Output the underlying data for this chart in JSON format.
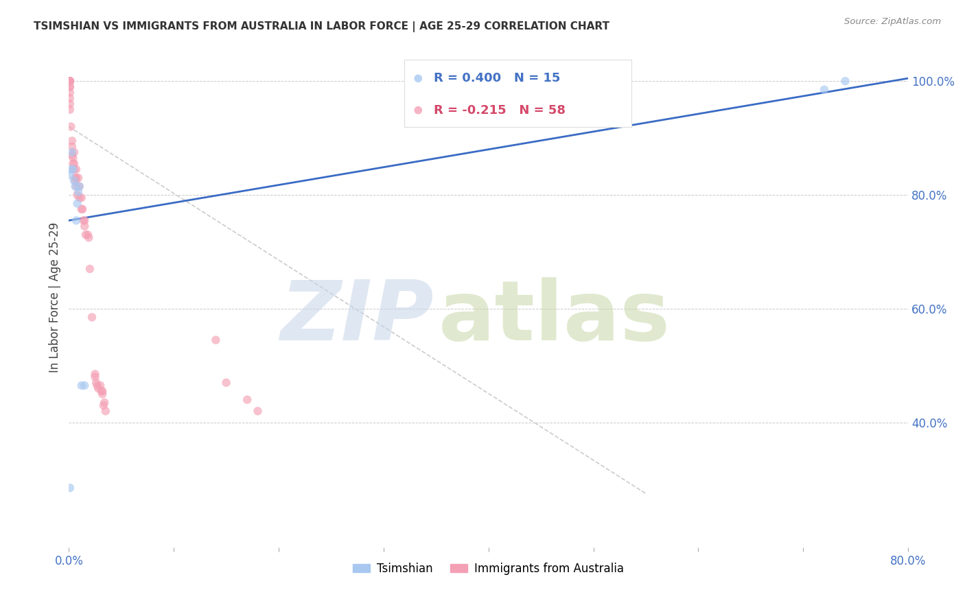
{
  "title": "TSIMSHIAN VS IMMIGRANTS FROM AUSTRALIA IN LABOR FORCE | AGE 25-29 CORRELATION CHART",
  "source": "Source: ZipAtlas.com",
  "ylabel": "In Labor Force | Age 25-29",
  "xlim": [
    0.0,
    0.8
  ],
  "ylim": [
    0.18,
    1.06
  ],
  "xticks": [
    0.0,
    0.1,
    0.2,
    0.3,
    0.4,
    0.5,
    0.6,
    0.7,
    0.8
  ],
  "yticks": [
    0.4,
    0.6,
    0.8,
    1.0
  ],
  "ytick_labels": [
    "40.0%",
    "60.0%",
    "80.0%",
    "100.0%"
  ],
  "xtick_labels": [
    "0.0%",
    "",
    "",
    "",
    "",
    "",
    "",
    "",
    "80.0%"
  ],
  "legend_entries": [
    {
      "label": "Tsimshian",
      "R": 0.4,
      "N": 15,
      "color": "#A8C8F0"
    },
    {
      "label": "Immigrants from Australia",
      "R": -0.215,
      "N": 58,
      "color": "#F4A0B4"
    }
  ],
  "blue_points_x": [
    0.001,
    0.001,
    0.002,
    0.003,
    0.004,
    0.005,
    0.006,
    0.007,
    0.008,
    0.009,
    0.01,
    0.012,
    0.015,
    0.72,
    0.74
  ],
  "blue_points_y": [
    0.285,
    0.835,
    0.845,
    0.875,
    0.845,
    0.825,
    0.815,
    0.755,
    0.785,
    0.805,
    0.815,
    0.465,
    0.465,
    0.985,
    1.0
  ],
  "pink_points_x": [
    0.001,
    0.001,
    0.001,
    0.001,
    0.001,
    0.001,
    0.001,
    0.001,
    0.001,
    0.001,
    0.001,
    0.001,
    0.001,
    0.002,
    0.003,
    0.003,
    0.003,
    0.004,
    0.004,
    0.005,
    0.005,
    0.005,
    0.006,
    0.006,
    0.007,
    0.007,
    0.007,
    0.008,
    0.009,
    0.01,
    0.01,
    0.012,
    0.012,
    0.013,
    0.014,
    0.015,
    0.015,
    0.016,
    0.018,
    0.019,
    0.02,
    0.022,
    0.025,
    0.025,
    0.026,
    0.027,
    0.028,
    0.03,
    0.031,
    0.032,
    0.032,
    0.033,
    0.034,
    0.035,
    0.14,
    0.15,
    0.17,
    0.18
  ],
  "pink_points_y": [
    1.0,
    1.0,
    1.0,
    1.0,
    1.0,
    1.0,
    1.0,
    0.99,
    0.99,
    0.98,
    0.97,
    0.96,
    0.95,
    0.92,
    0.895,
    0.885,
    0.87,
    0.865,
    0.855,
    0.875,
    0.855,
    0.845,
    0.83,
    0.825,
    0.845,
    0.83,
    0.815,
    0.8,
    0.83,
    0.815,
    0.795,
    0.795,
    0.775,
    0.775,
    0.755,
    0.755,
    0.745,
    0.73,
    0.73,
    0.725,
    0.67,
    0.585,
    0.485,
    0.48,
    0.47,
    0.465,
    0.46,
    0.465,
    0.455,
    0.45,
    0.455,
    0.43,
    0.435,
    0.42,
    0.545,
    0.47,
    0.44,
    0.42
  ],
  "blue_line": {
    "x0": 0.0,
    "y0": 0.755,
    "x1": 0.8,
    "y1": 1.005
  },
  "pink_line": {
    "x0": 0.0,
    "y0": 0.92,
    "x1": 0.55,
    "y1": 0.275
  },
  "watermark_zip": "ZIP",
  "watermark_atlas": "atlas",
  "title_color": "#333333",
  "axis_color": "#4472C4",
  "blue_dot_color": "#A8C8F0",
  "pink_dot_color": "#F4A0B4",
  "blue_line_color": "#3A6BC4",
  "pink_line_color": "#D4496A",
  "pink_trend_color": "#CCCCCC",
  "grid_color": "#BBBBBB",
  "background_color": "#FFFFFF",
  "watermark_zip_color": "#C5D5E8",
  "watermark_atlas_color": "#C8D8A8",
  "dot_size": 80,
  "dot_alpha": 0.65
}
